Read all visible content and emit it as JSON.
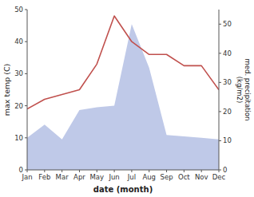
{
  "chart_data": {
    "type": "line",
    "xlabel": "date (month)",
    "ylabel": "max temp (C)",
    "y2label": "med. precipitation\n(kg/m2)",
    "categories": [
      "Jan",
      "Feb",
      "Mar",
      "Apr",
      "May",
      "Jun",
      "Jul",
      "Aug",
      "Sep",
      "Oct",
      "Nov",
      "Dec"
    ],
    "series": [
      {
        "type": "area",
        "axis": "y2",
        "color": "#bfc9e8",
        "values": [
          11.0,
          15.5,
          10.5,
          20.5,
          21.5,
          22.0,
          50.0,
          35.0,
          12.0,
          11.5,
          11.0,
          10.5
        ]
      },
      {
        "type": "line",
        "color": "#c0504d",
        "values": [
          19.0,
          22.0,
          23.5,
          25.0,
          33.0,
          48.0,
          40.0,
          36.0,
          36.0,
          32.5,
          32.5,
          25.0
        ]
      }
    ],
    "ylim": [
      0,
      50
    ],
    "yticks": [
      0,
      10,
      20,
      30,
      40,
      50
    ],
    "y2lim": [
      0,
      55
    ],
    "y2ticks": [
      0,
      10,
      20,
      30,
      40,
      50
    ]
  }
}
